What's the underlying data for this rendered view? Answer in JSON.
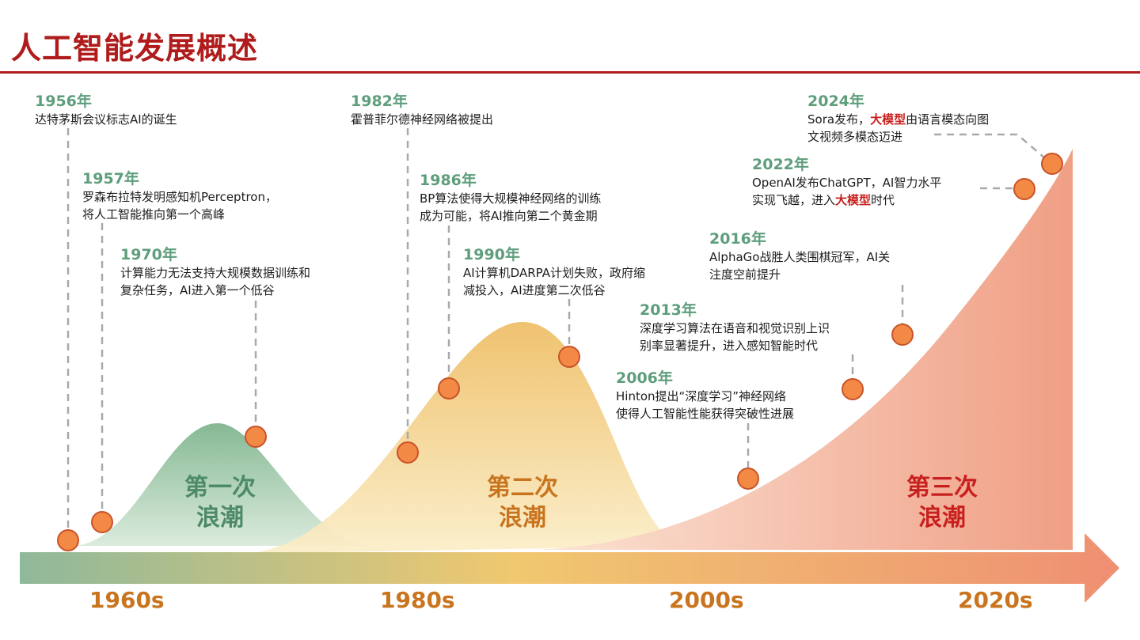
{
  "title": "人工智能发展概述",
  "colors": {
    "title": "#b01c1c",
    "year": "#5e9e7c",
    "highlight": "#c8201e",
    "marker_fill": "#f28a45",
    "marker_stroke": "#c9532a",
    "wave1": "#a8ceb0",
    "wave2": "#f2c56e",
    "wave3": "#f0a184",
    "decade": "#c9741e"
  },
  "waves": [
    {
      "label": "第一次\n浪潮",
      "color": "#4d8a67"
    },
    {
      "label": "第二次\n浪潮",
      "color": "#c9741e"
    },
    {
      "label": "第三次\n浪潮",
      "color": "#c8201e"
    }
  ],
  "decades": [
    "1960s",
    "1980s",
    "2000s",
    "2020s"
  ],
  "events": [
    {
      "year": "1956年",
      "desc": "达特茅斯会议标志AI的诞生"
    },
    {
      "year": "1957年",
      "desc": "罗森布拉特发明感知机Perceptron，\n将人工智能推向第一个高峰"
    },
    {
      "year": "1970年",
      "desc": "计算能力无法支持大规模数据训练和\n复杂任务，AI进入第一个低谷"
    },
    {
      "year": "1982年",
      "desc": "霍普菲尔德神经网络被提出"
    },
    {
      "year": "1986年",
      "desc": "BP算法使得大规模神经网络的训练\n成为可能，将AI推向第二个黄金期"
    },
    {
      "year": "1990年",
      "desc": "AI计算机DARPA计划失败，政府缩\n减投入，AI进度第二次低谷"
    },
    {
      "year": "2006年",
      "desc": "Hinton提出“深度学习”神经网络\n使得人工智能性能获得突破性进展"
    },
    {
      "year": "2013年",
      "desc": "深度学习算法在语音和视觉识别上识\n别率显著提升，进入感知智能时代"
    },
    {
      "year": "2016年",
      "desc": "AlphaGo战胜人类围棋冠军，AI关\n注度空前提升"
    },
    {
      "year": "2022年",
      "desc_parts": [
        "OpenAI发布ChatGPT，AI智力水平\n实现飞越，进入",
        "大模型",
        "时代"
      ]
    },
    {
      "year": "2024年",
      "desc_parts": [
        "Sora发布，",
        "大模型",
        "由语言模态向图\n文视频多模态迈进"
      ]
    }
  ]
}
